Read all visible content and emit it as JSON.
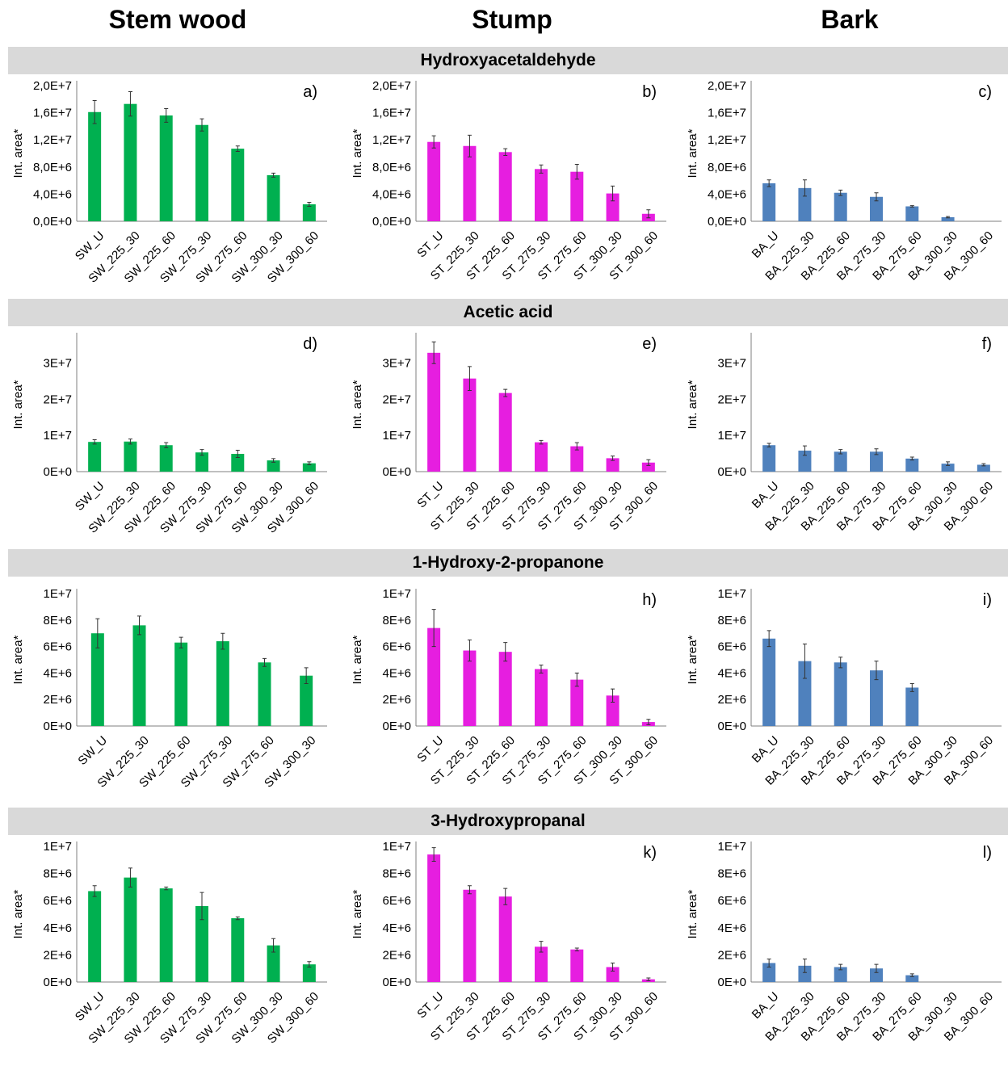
{
  "columns": [
    "Stem wood",
    "Stump",
    "Bark"
  ],
  "sections": [
    "Hydroxyacetaldehyde",
    "Acetic acid",
    "1-Hydroxy-2-propanone",
    "3-Hydroxypropanal"
  ],
  "colors": {
    "stem_wood": "#00b050",
    "stump": "#e61ee0",
    "bark": "#4f81bd",
    "band": "#d9d9d9"
  },
  "chart_data": [
    {
      "id": "a",
      "type": "bar",
      "ylabel": "Int. area*",
      "panel_label": "a)",
      "ylim": [
        0,
        20000000
      ],
      "yticks": [
        0,
        4000000,
        8000000,
        12000000,
        16000000,
        20000000
      ],
      "ytick_labels": [
        "0,0E+0",
        "4,0E+6",
        "8,0E+6",
        "1,2E+7",
        "1,6E+7",
        "2,0E+7"
      ],
      "categories": [
        "SW_U",
        "SW_225_30",
        "SW_225_60",
        "SW_275_30",
        "SW_275_60",
        "SW_300_30",
        "SW_300_60"
      ],
      "values": [
        16100000,
        17300000,
        15600000,
        14200000,
        10700000,
        6800000,
        2500000
      ],
      "errors": [
        1700000,
        1800000,
        1000000,
        900000,
        400000,
        300000,
        300000
      ]
    },
    {
      "id": "b",
      "type": "bar",
      "ylabel": "Int. area*",
      "panel_label": "b)",
      "ylim": [
        0,
        20000000
      ],
      "yticks": [
        0,
        4000000,
        8000000,
        12000000,
        16000000,
        20000000
      ],
      "ytick_labels": [
        "0,0E+0",
        "4,0E+6",
        "8,0E+6",
        "1,2E+7",
        "1,6E+7",
        "2,0E+7"
      ],
      "categories": [
        "ST_U",
        "ST_225_30",
        "ST_225_60",
        "ST_275_30",
        "ST_275_60",
        "ST_300_30",
        "ST_300_60"
      ],
      "values": [
        11700000,
        11100000,
        10200000,
        7700000,
        7300000,
        4100000,
        1100000
      ],
      "errors": [
        900000,
        1600000,
        500000,
        600000,
        1100000,
        1100000,
        600000
      ]
    },
    {
      "id": "c",
      "type": "bar",
      "ylabel": "Int. area*",
      "panel_label": "c)",
      "ylim": [
        0,
        20000000
      ],
      "yticks": [
        0,
        4000000,
        8000000,
        12000000,
        16000000,
        20000000
      ],
      "ytick_labels": [
        "0,0E+0",
        "4,0E+6",
        "8,0E+6",
        "1,2E+7",
        "1,6E+7",
        "2,0E+7"
      ],
      "categories": [
        "BA_U",
        "BA_225_30",
        "BA_225_60",
        "BA_275_30",
        "BA_275_60",
        "BA_300_30",
        "BA_300_60"
      ],
      "values": [
        5600000,
        4900000,
        4200000,
        3600000,
        2200000,
        600000,
        0
      ],
      "errors": [
        500000,
        1200000,
        400000,
        600000,
        100000,
        100000,
        0
      ]
    },
    {
      "id": "d",
      "type": "bar",
      "ylabel": "Int. area*",
      "panel_label": "d)",
      "ylim": [
        0,
        37000000
      ],
      "yticks": [
        0,
        10000000,
        20000000,
        30000000
      ],
      "ytick_labels": [
        "0E+0",
        "1E+7",
        "2E+7",
        "3E+7"
      ],
      "categories": [
        "SW_U",
        "SW_225_30",
        "SW_225_60",
        "SW_275_30",
        "SW_275_60",
        "SW_300_30",
        "SW_300_60"
      ],
      "values": [
        8200000,
        8300000,
        7300000,
        5300000,
        4900000,
        3100000,
        2300000
      ],
      "errors": [
        600000,
        700000,
        700000,
        800000,
        1000000,
        500000,
        400000
      ]
    },
    {
      "id": "e",
      "type": "bar",
      "ylabel": "Int. area*",
      "panel_label": "e)",
      "ylim": [
        0,
        37000000
      ],
      "yticks": [
        0,
        10000000,
        20000000,
        30000000
      ],
      "ytick_labels": [
        "0E+0",
        "1E+7",
        "2E+7",
        "3E+7"
      ],
      "categories": [
        "ST_U",
        "ST_225_30",
        "ST_225_60",
        "ST_275_30",
        "ST_275_60",
        "ST_300_30",
        "ST_300_60"
      ],
      "values": [
        32800000,
        25700000,
        21700000,
        8100000,
        7000000,
        3700000,
        2500000
      ],
      "errors": [
        3000000,
        3300000,
        1000000,
        500000,
        1000000,
        600000,
        800000
      ]
    },
    {
      "id": "f",
      "type": "bar",
      "ylabel": "Int. area*",
      "panel_label": "f)",
      "ylim": [
        0,
        37000000
      ],
      "yticks": [
        0,
        10000000,
        20000000,
        30000000
      ],
      "ytick_labels": [
        "0E+0",
        "1E+7",
        "2E+7",
        "3E+7"
      ],
      "categories": [
        "BA_U",
        "BA_225_30",
        "BA_225_60",
        "BA_275_30",
        "BA_275_60",
        "BA_300_30",
        "BA_300_60"
      ],
      "values": [
        7300000,
        5800000,
        5500000,
        5500000,
        3600000,
        2200000,
        1900000
      ],
      "errors": [
        500000,
        1300000,
        600000,
        800000,
        400000,
        500000,
        300000
      ]
    },
    {
      "id": "g",
      "type": "bar",
      "ylabel": "Int. area*",
      "panel_label": "",
      "ylim": [
        0,
        10000000
      ],
      "yticks": [
        0,
        2000000,
        4000000,
        6000000,
        8000000,
        10000000
      ],
      "ytick_labels": [
        "0E+0",
        "2E+6",
        "4E+6",
        "6E+6",
        "8E+6",
        "1E+7"
      ],
      "categories": [
        "SW_U",
        "SW_225_30",
        "SW_225_60",
        "SW_275_30",
        "SW_275_60",
        "SW_300_30"
      ],
      "values": [
        7000000,
        7600000,
        6300000,
        6400000,
        4800000,
        3800000
      ],
      "errors": [
        1100000,
        700000,
        400000,
        600000,
        300000,
        600000
      ]
    },
    {
      "id": "h",
      "type": "bar",
      "ylabel": "Int. area*",
      "panel_label": "h)",
      "ylim": [
        0,
        10000000
      ],
      "yticks": [
        0,
        2000000,
        4000000,
        6000000,
        8000000,
        10000000
      ],
      "ytick_labels": [
        "0E+0",
        "2E+6",
        "4E+6",
        "6E+6",
        "8E+6",
        "1E+7"
      ],
      "categories": [
        "ST_U",
        "ST_225_30",
        "ST_225_60",
        "ST_275_30",
        "ST_275_60",
        "ST_300_30",
        "ST_300_60"
      ],
      "values": [
        7400000,
        5700000,
        5600000,
        4300000,
        3500000,
        2300000,
        300000
      ],
      "errors": [
        1400000,
        800000,
        700000,
        300000,
        500000,
        500000,
        200000
      ]
    },
    {
      "id": "i",
      "type": "bar",
      "ylabel": "Int. area*",
      "panel_label": "i)",
      "ylim": [
        0,
        10000000
      ],
      "yticks": [
        0,
        2000000,
        4000000,
        6000000,
        8000000,
        10000000
      ],
      "ytick_labels": [
        "0E+0",
        "2E+6",
        "4E+6",
        "6E+6",
        "8E+6",
        "1E+7"
      ],
      "categories": [
        "BA_U",
        "BA_225_30",
        "BA_225_60",
        "BA_275_30",
        "BA_275_60",
        "BA_300_30",
        "BA_300_60"
      ],
      "values": [
        6600000,
        4900000,
        4800000,
        4200000,
        2900000,
        0,
        0
      ],
      "errors": [
        600000,
        1300000,
        400000,
        700000,
        300000,
        0,
        0
      ]
    },
    {
      "id": "j",
      "type": "bar",
      "ylabel": "Int. area*",
      "panel_label": "",
      "ylim": [
        0,
        10000000
      ],
      "yticks": [
        0,
        2000000,
        4000000,
        6000000,
        8000000,
        10000000
      ],
      "ytick_labels": [
        "0E+0",
        "2E+6",
        "4E+6",
        "6E+6",
        "8E+6",
        "1E+7"
      ],
      "categories": [
        "SW_U",
        "SW_225_30",
        "SW_225_60",
        "SW_275_30",
        "SW_275_60",
        "SW_300_30",
        "SW_300_60"
      ],
      "values": [
        6700000,
        7700000,
        6900000,
        5600000,
        4700000,
        2700000,
        1300000
      ],
      "errors": [
        400000,
        700000,
        100000,
        1000000,
        100000,
        500000,
        200000
      ]
    },
    {
      "id": "k",
      "type": "bar",
      "ylabel": "Int. area*",
      "panel_label": "k)",
      "ylim": [
        0,
        10000000
      ],
      "yticks": [
        0,
        2000000,
        4000000,
        6000000,
        8000000,
        10000000
      ],
      "ytick_labels": [
        "0E+0",
        "2E+6",
        "4E+6",
        "6E+6",
        "8E+6",
        "1E+7"
      ],
      "categories": [
        "ST_U",
        "ST_225_30",
        "ST_225_60",
        "ST_275_30",
        "ST_275_60",
        "ST_300_30",
        "ST_300_60"
      ],
      "values": [
        9400000,
        6800000,
        6300000,
        2600000,
        2400000,
        1100000,
        200000
      ],
      "errors": [
        500000,
        300000,
        600000,
        400000,
        100000,
        300000,
        100000
      ]
    },
    {
      "id": "l",
      "type": "bar",
      "ylabel": "Int. area*",
      "panel_label": "l)",
      "ylim": [
        0,
        10000000
      ],
      "yticks": [
        0,
        2000000,
        4000000,
        6000000,
        8000000,
        10000000
      ],
      "ytick_labels": [
        "0E+0",
        "2E+6",
        "4E+6",
        "6E+6",
        "8E+6",
        "1E+7"
      ],
      "categories": [
        "BA_U",
        "BA_225_30",
        "BA_225_60",
        "BA_275_30",
        "BA_275_60",
        "BA_300_30",
        "BA_300_60"
      ],
      "values": [
        1400000,
        1200000,
        1100000,
        1000000,
        500000,
        0,
        0
      ],
      "errors": [
        300000,
        500000,
        200000,
        300000,
        100000,
        0,
        0
      ]
    }
  ]
}
